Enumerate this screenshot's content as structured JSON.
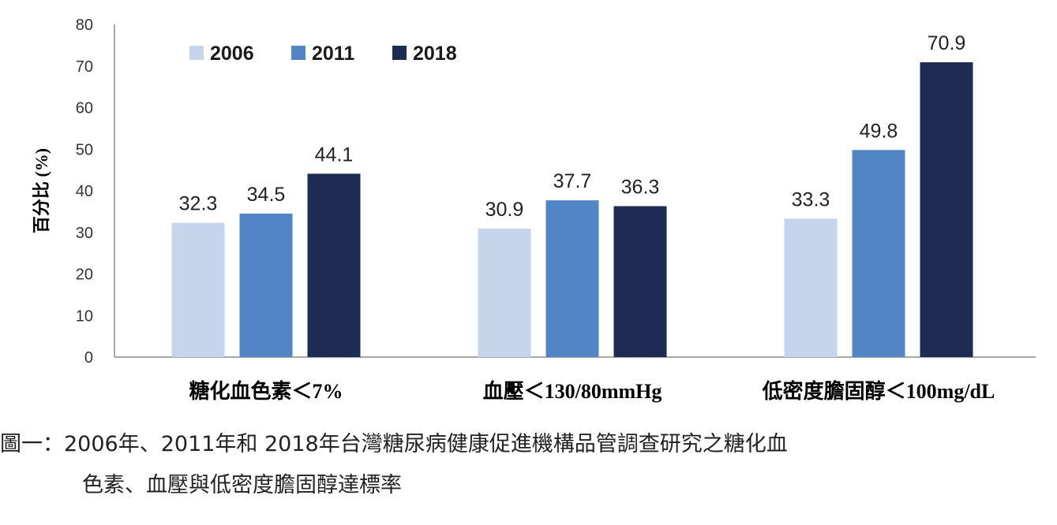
{
  "chart_data": {
    "type": "bar",
    "title": "",
    "xlabel": "",
    "ylabel": "百分比 (%)",
    "ylim": [
      0,
      80
    ],
    "yticks": [
      0,
      10,
      20,
      30,
      40,
      50,
      60,
      70,
      80
    ],
    "categories": [
      "糖化血色素＜7%",
      "血壓＜130/80mmHg",
      "低密度膽固醇＜100mg/dL"
    ],
    "series": [
      {
        "name": "2006",
        "values": [
          32.3,
          30.9,
          33.3
        ],
        "color": "#c6d5ec"
      },
      {
        "name": "2011",
        "values": [
          34.5,
          37.7,
          49.8
        ],
        "color": "#5185c6"
      },
      {
        "name": "2018",
        "values": [
          44.1,
          36.3,
          70.9
        ],
        "color": "#1e2b52"
      }
    ],
    "value_labels": [
      [
        "32.3",
        "30.9",
        "33.3"
      ],
      [
        "34.5",
        "37.7",
        "49.8"
      ],
      [
        "44.1",
        "36.3",
        "70.9"
      ]
    ],
    "legend_position": "top-left",
    "grid": false
  },
  "caption": {
    "prefix": "圖一：",
    "line1": "2006年、2011年和 2018年台灣糖尿病健康促進機構品管調查研究之糖化血",
    "line2": "色素、血壓與低密度膽固醇達標率"
  }
}
